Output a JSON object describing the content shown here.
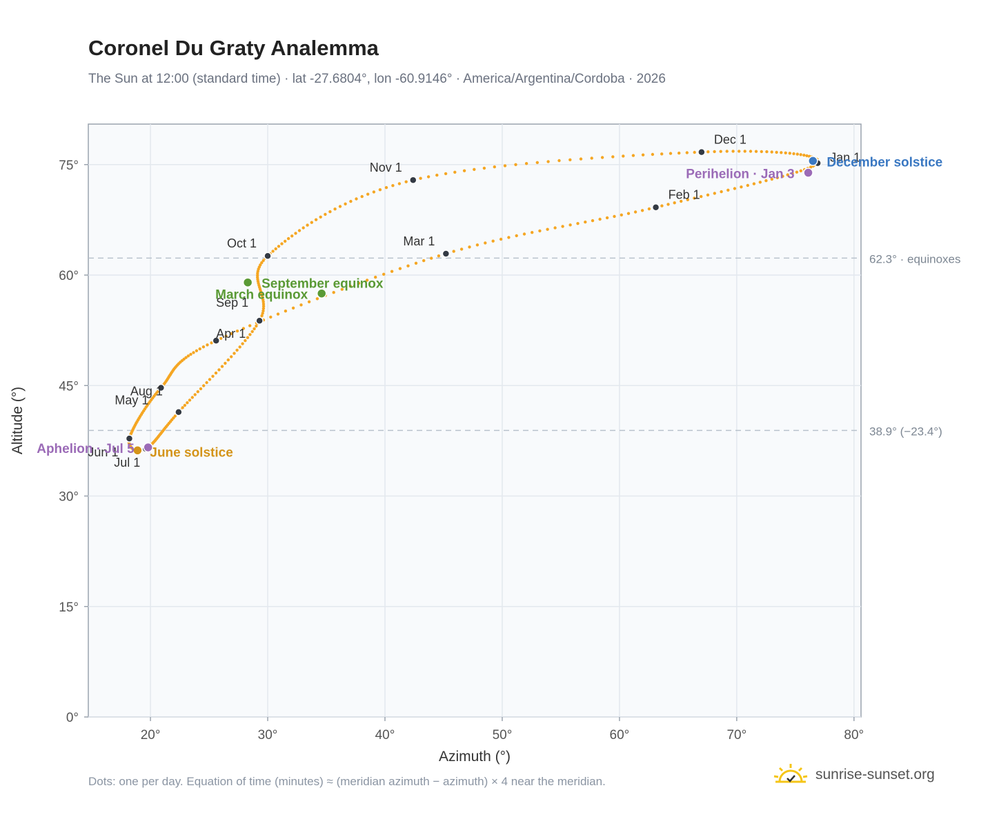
{
  "chart_data": {
    "type": "scatter",
    "title": "Coronel Du Graty Analemma",
    "subtitle": "The Sun at 12:00 (standard time) · lat -27.6804°, lon -60.9146° · America/Argentina/Cordoba · 2026",
    "xlabel": "Azimuth (°)",
    "ylabel": "Altitude (°)",
    "xlim": [
      14.7,
      80.6
    ],
    "ylim": [
      0,
      80.5
    ],
    "xticks": [
      20,
      30,
      40,
      50,
      60,
      70,
      80
    ],
    "xtick_labels": [
      "20°",
      "30°",
      "40°",
      "50°",
      "60°",
      "70°",
      "80°"
    ],
    "yticks": [
      0,
      15,
      30,
      45,
      60,
      75
    ],
    "ytick_labels": [
      "0°",
      "15°",
      "30°",
      "45°",
      "60°",
      "75°"
    ],
    "grid": true,
    "line_color": "#f5a623",
    "month_points": [
      {
        "label": "Jan 1",
        "x": 76.9,
        "y": 75.2
      },
      {
        "label": "Feb 1",
        "x": 63.1,
        "y": 69.2
      },
      {
        "label": "Mar 1",
        "x": 45.2,
        "y": 62.9
      },
      {
        "label": "Apr 1",
        "x": 25.6,
        "y": 51.1
      },
      {
        "label": "May 1",
        "x": 20.9,
        "y": 44.7
      },
      {
        "label": "Jun 1",
        "x": 18.2,
        "y": 37.8
      },
      {
        "label": "Jul 1",
        "x": 19.6,
        "y": 36.4
      },
      {
        "label": "Aug 1",
        "x": 22.4,
        "y": 41.4
      },
      {
        "label": "Sep 1",
        "x": 29.3,
        "y": 53.8
      },
      {
        "label": "Oct 1",
        "x": 30.0,
        "y": 62.6
      },
      {
        "label": "Nov 1",
        "x": 42.4,
        "y": 72.9
      },
      {
        "label": "Dec 1",
        "x": 67.0,
        "y": 76.7
      }
    ],
    "events": [
      {
        "label": "December solstice",
        "x": 76.5,
        "y": 75.5,
        "color": "#3a78c2"
      },
      {
        "label": "Perihelion · Jan 3",
        "x": 76.1,
        "y": 73.9,
        "color": "#9b6bb7"
      },
      {
        "label": "September equinox",
        "x": 28.3,
        "y": 59.0,
        "color": "#5a9a35"
      },
      {
        "label": "March equinox",
        "x": 34.6,
        "y": 57.5,
        "color": "#5a9a35"
      },
      {
        "label": "June solstice",
        "x": 18.9,
        "y": 36.2,
        "color": "#d4941a"
      },
      {
        "label": "Aphelion · Jul 5",
        "x": 19.8,
        "y": 36.6,
        "color": "#9b6bb7"
      }
    ],
    "reference_lines": [
      {
        "y": 62.3,
        "label": "62.3° · equinoxes"
      },
      {
        "y": 38.9,
        "label": "38.9° (−23.4°)"
      }
    ]
  },
  "footnote": "Dots: one per day. Equation of time (minutes) ≈ (meridian azimuth − azimuth) × 4 near the meridian.",
  "brand": {
    "text": "sunrise-sunset.org",
    "icon": "sun-logo-icon"
  }
}
